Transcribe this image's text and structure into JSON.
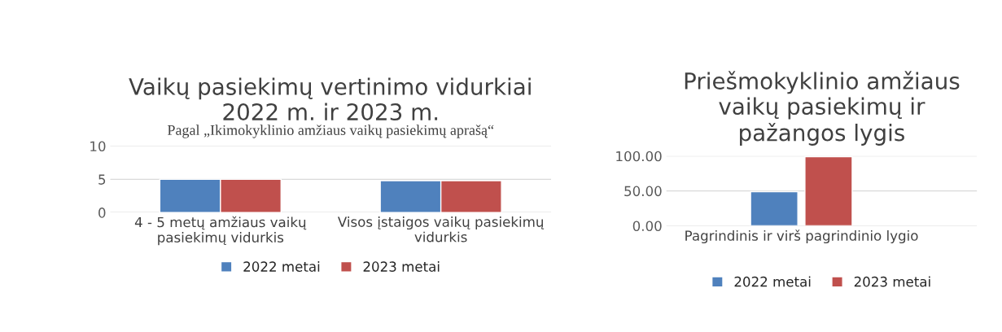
{
  "chart_data": [
    {
      "type": "bar",
      "title": "Vaikų pasiekimų vertinimo vidurkiai\n2022 m. ir 2023 m.",
      "subtitle": "Pagal „Ikimokyklinio amžiaus vaikų pasiekimų aprašą“",
      "categories": [
        "4 - 5 metų amžiaus vaikų\npasiekimų vidurkis",
        "Visos įstaigos vaikų pasiekimų\nvidurkis"
      ],
      "series": [
        {
          "name": "2022 metai",
          "color": "#4f81bd",
          "values": [
            5.0,
            4.8
          ]
        },
        {
          "name": "2023 metai",
          "color": "#c0504d",
          "values": [
            5.0,
            4.8
          ]
        }
      ],
      "ylim": [
        0,
        10
      ],
      "yticks": [
        0,
        5,
        10
      ],
      "grid": "y",
      "legend": "bottom"
    },
    {
      "type": "bar",
      "title": "Priešmokyklinio amžiaus\nvaikų pasiekimų ir\npažangos lygis",
      "categories": [
        "Pagrindinis ir virš pagrindinio lygio"
      ],
      "series": [
        {
          "name": "2022 metai",
          "color": "#4f81bd",
          "values": [
            49
          ]
        },
        {
          "name": "2023 metai",
          "color": "#c0504d",
          "values": [
            99
          ]
        }
      ],
      "ylim": [
        0,
        100
      ],
      "yticks": [
        {
          "value": 0,
          "label": "0.00"
        },
        {
          "value": 50,
          "label": "50.00"
        },
        {
          "value": 100,
          "label": "100.00"
        }
      ],
      "grid": "y",
      "legend": "bottom"
    }
  ]
}
